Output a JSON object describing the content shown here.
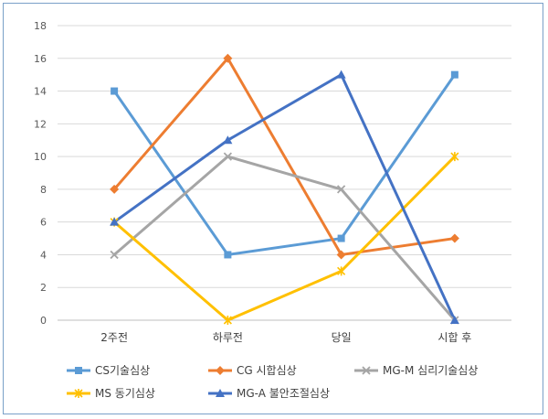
{
  "chart_data": {
    "type": "line",
    "title": "",
    "xlabel": "",
    "ylabel": "",
    "categories": [
      "2주전",
      "하루전",
      "당일",
      "시합 후"
    ],
    "ylim": [
      0,
      18
    ],
    "yticks": [
      0,
      2,
      4,
      6,
      8,
      10,
      12,
      14,
      16,
      18
    ],
    "grid": true,
    "legend_position": "bottom",
    "series": [
      {
        "name": "CS기술심상",
        "values": [
          14,
          4,
          5,
          15
        ],
        "color": "#5b9bd5",
        "marker": "square"
      },
      {
        "name": "CG 시합심상",
        "values": [
          8,
          16,
          4,
          5
        ],
        "color": "#ed7d31",
        "marker": "diamond"
      },
      {
        "name": "MG-M 심리기술심상",
        "values": [
          4,
          10,
          8,
          0
        ],
        "color": "#a5a5a5",
        "marker": "x"
      },
      {
        "name": "MS 동기심상",
        "values": [
          6,
          0,
          3,
          10
        ],
        "color": "#ffc000",
        "marker": "star"
      },
      {
        "name": "MG-A 불안조절심상",
        "values": [
          6,
          11,
          15,
          0
        ],
        "color": "#4472c4",
        "marker": "triangle"
      }
    ]
  }
}
